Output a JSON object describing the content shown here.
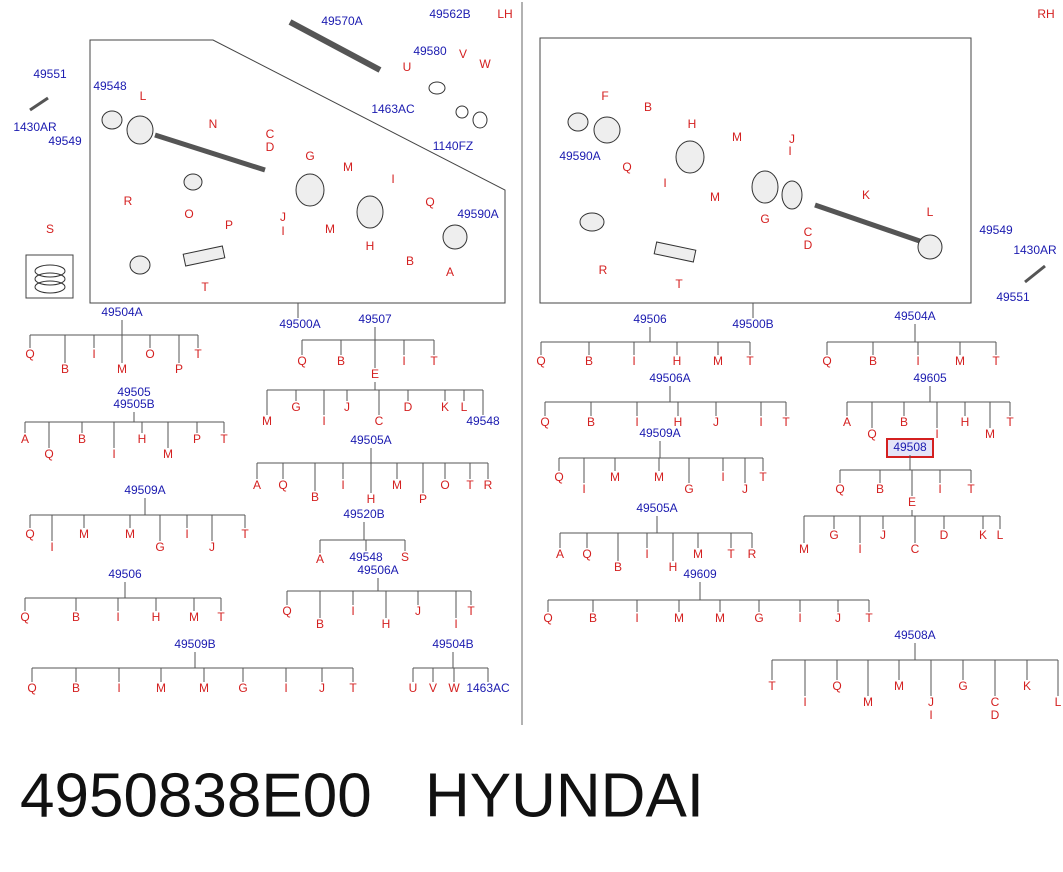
{
  "callouts": [
    "LH",
    "RH",
    "49570A",
    "49562B",
    "49551",
    "49548",
    "L",
    "49580",
    "U",
    "V",
    "W",
    "1430AR",
    "49549",
    "1463AC",
    "N",
    "1140FZ",
    "C",
    "D",
    "G",
    "M",
    "I",
    "Q",
    "49590A",
    "R",
    "O",
    "P",
    "J",
    "I",
    "M",
    "H",
    "B",
    "A",
    "T",
    "S",
    "49500A",
    "F",
    "B",
    "49590A",
    "Q",
    "I",
    "H",
    "M",
    "M",
    "J",
    "I",
    "G",
    "K",
    "C",
    "D",
    "L",
    "R",
    "T",
    "49549",
    "1430AR",
    "49551",
    "49500B"
  ],
  "trees": [
    {
      "roots": [
        "49504A"
      ],
      "children": [
        "Q",
        "B",
        "I",
        "M",
        "O",
        "P",
        "T"
      ]
    },
    {
      "roots": [
        "49507"
      ],
      "children": [
        "Q",
        "B",
        "E",
        "I",
        "T"
      ]
    },
    {
      "children": [
        "M",
        "G",
        "I",
        "J",
        "C",
        "D",
        "K",
        "L",
        "49548"
      ]
    },
    {
      "roots": [
        "49505",
        "49505B"
      ],
      "children": [
        "A",
        "Q",
        "B",
        "I",
        "H",
        "M",
        "P",
        "T"
      ]
    },
    {
      "roots": [
        "49505A"
      ],
      "children": [
        "A",
        "Q",
        "B",
        "I",
        "H",
        "M",
        "P",
        "O",
        "T",
        "R"
      ]
    },
    {
      "roots": [
        "49509A"
      ],
      "children": [
        "Q",
        "I",
        "M",
        "M",
        "G",
        "I",
        "J",
        "T"
      ]
    },
    {
      "roots": [
        "49520B"
      ],
      "children": [
        "A",
        "49548",
        "S"
      ]
    },
    {
      "roots": [
        "49506A"
      ],
      "children": [
        "Q",
        "B",
        "I",
        "H",
        "J",
        "I",
        "T"
      ]
    },
    {
      "roots": [
        "49506"
      ],
      "children": [
        "Q",
        "B",
        "I",
        "H",
        "M",
        "T"
      ]
    },
    {
      "roots": [
        "49509B"
      ],
      "children": [
        "Q",
        "B",
        "I",
        "M",
        "M",
        "G",
        "I",
        "J",
        "T"
      ]
    },
    {
      "roots": [
        "49504B"
      ],
      "children": [
        "U",
        "V",
        "W",
        "1463AC"
      ]
    },
    {
      "roots": [
        "49506"
      ],
      "children": [
        "Q",
        "B",
        "I",
        "H",
        "M",
        "T"
      ]
    },
    {
      "roots": [
        "49504A"
      ],
      "children": [
        "Q",
        "B",
        "I",
        "M",
        "T"
      ]
    },
    {
      "roots": [
        "49506A"
      ],
      "children": [
        "Q",
        "B",
        "I",
        "H",
        "J",
        "I",
        "T"
      ]
    },
    {
      "roots": [
        "49605"
      ],
      "children": [
        "A",
        "Q",
        "B",
        "I",
        "H",
        "M",
        "T"
      ]
    },
    {
      "roots": [
        "49509A"
      ],
      "children": [
        "Q",
        "I",
        "M",
        "M",
        "G",
        "I",
        "J",
        "T"
      ]
    },
    {
      "roots": [
        "49508"
      ],
      "children": [
        "Q",
        "B",
        "E",
        "I",
        "T"
      ]
    },
    {
      "children": [
        "M",
        "G",
        "I",
        "J",
        "C",
        "D",
        "K",
        "L"
      ]
    },
    {
      "roots": [
        "49505A"
      ],
      "children": [
        "A",
        "Q",
        "B",
        "I",
        "H",
        "M",
        "T",
        "R"
      ]
    },
    {
      "roots": [
        "49609"
      ],
      "children": [
        "Q",
        "B",
        "I",
        "M",
        "M",
        "G",
        "I",
        "J",
        "T"
      ]
    },
    {
      "roots": [
        "49508A"
      ],
      "children": [
        "T",
        "I",
        "Q",
        "M",
        "M",
        "J",
        "I",
        "G",
        "C",
        "D",
        "K",
        "L"
      ]
    }
  ],
  "footer": {
    "part_number": "4950838E00",
    "brand": "HYUNDAI"
  }
}
